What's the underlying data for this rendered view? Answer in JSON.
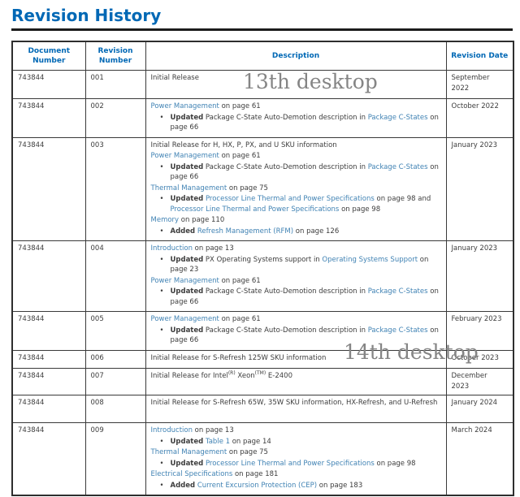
{
  "page": {
    "title": "Revision History"
  },
  "colors": {
    "accent_blue": "#0068b5",
    "link_blue": "#4183b4",
    "body_text": "#3d3d3d",
    "border": "#3a3a3a",
    "watermark_gray": "#858585"
  },
  "watermarks": [
    {
      "text": "13th desktop"
    },
    {
      "text": "14th desktop"
    }
  ],
  "table": {
    "headers": [
      "Document Number",
      "Revision Number",
      "Description",
      "Revision Date"
    ],
    "rows": [
      {
        "document_number": "743844",
        "revision_number": "001",
        "revision_date": "September\n2022",
        "description": [
          {
            "kind": "para",
            "segments": [
              {
                "style": "plain",
                "text": "Initial Release"
              }
            ]
          }
        ]
      },
      {
        "document_number": "743844",
        "revision_number": "002",
        "revision_date": "October 2022",
        "description": [
          {
            "kind": "para",
            "segments": [
              {
                "style": "link",
                "text": "Power Management"
              },
              {
                "style": "plain",
                "text": " on page 61"
              }
            ]
          },
          {
            "kind": "bullet",
            "segments": [
              {
                "style": "bold",
                "text": "Updated"
              },
              {
                "style": "plain",
                "text": " Package C-State Auto-Demotion description in "
              },
              {
                "style": "link",
                "text": "Package C-States"
              },
              {
                "style": "plain",
                "text": " on page 66"
              }
            ]
          }
        ]
      },
      {
        "document_number": "743844",
        "revision_number": "003",
        "revision_date": "January 2023",
        "description": [
          {
            "kind": "para",
            "segments": [
              {
                "style": "plain",
                "text": "Initial Release for H, HX, P, PX, and U SKU information"
              }
            ]
          },
          {
            "kind": "para",
            "segments": [
              {
                "style": "link",
                "text": "Power Management"
              },
              {
                "style": "plain",
                "text": " on page 61"
              }
            ]
          },
          {
            "kind": "bullet",
            "segments": [
              {
                "style": "bold",
                "text": "Updated"
              },
              {
                "style": "plain",
                "text": " Package C-State Auto-Demotion description in "
              },
              {
                "style": "link",
                "text": "Package C-States"
              },
              {
                "style": "plain",
                "text": " on page 66"
              }
            ]
          },
          {
            "kind": "para",
            "segments": [
              {
                "style": "link",
                "text": "Thermal Management"
              },
              {
                "style": "plain",
                "text": " on page 75"
              }
            ]
          },
          {
            "kind": "bullet",
            "segments": [
              {
                "style": "bold",
                "text": "Updated"
              },
              {
                "style": "plain",
                "text": " "
              },
              {
                "style": "link",
                "text": "Processor Line Thermal and Power Specifications"
              },
              {
                "style": "plain",
                "text": " on page 98 and "
              },
              {
                "style": "link",
                "text": "Processor Line Thermal and Power Specifications"
              },
              {
                "style": "plain",
                "text": " on page 98"
              }
            ]
          },
          {
            "kind": "para",
            "segments": [
              {
                "style": "link",
                "text": "Memory"
              },
              {
                "style": "plain",
                "text": " on page 110"
              }
            ]
          },
          {
            "kind": "bullet",
            "segments": [
              {
                "style": "bold",
                "text": "Added"
              },
              {
                "style": "plain",
                "text": " "
              },
              {
                "style": "link",
                "text": "Refresh Management (RFM)"
              },
              {
                "style": "plain",
                "text": " on page 126"
              }
            ]
          }
        ]
      },
      {
        "document_number": "743844",
        "revision_number": "004",
        "revision_date": "January 2023",
        "description": [
          {
            "kind": "para",
            "segments": [
              {
                "style": "link",
                "text": "Introduction"
              },
              {
                "style": "plain",
                "text": " on page 13"
              }
            ]
          },
          {
            "kind": "bullet",
            "segments": [
              {
                "style": "bold",
                "text": "Updated"
              },
              {
                "style": "plain",
                "text": " PX Operating Systems support in "
              },
              {
                "style": "link",
                "text": "Operating Systems Support"
              },
              {
                "style": "plain",
                "text": " on page 23"
              }
            ]
          },
          {
            "kind": "para",
            "segments": [
              {
                "style": "link",
                "text": "Power Management"
              },
              {
                "style": "plain",
                "text": " on page 61"
              }
            ]
          },
          {
            "kind": "bullet",
            "segments": [
              {
                "style": "bold",
                "text": "Updated"
              },
              {
                "style": "plain",
                "text": " Package C-State Auto-Demotion description in "
              },
              {
                "style": "link",
                "text": "Package C-States"
              },
              {
                "style": "plain",
                "text": " on page 66"
              }
            ]
          }
        ]
      },
      {
        "document_number": "743844",
        "revision_number": "005",
        "revision_date": "February 2023",
        "description": [
          {
            "kind": "para",
            "segments": [
              {
                "style": "link",
                "text": "Power Management"
              },
              {
                "style": "plain",
                "text": " on page 61"
              }
            ]
          },
          {
            "kind": "bullet",
            "segments": [
              {
                "style": "bold",
                "text": "Updated"
              },
              {
                "style": "plain",
                "text": " Package C-State Auto-Demotion description in "
              },
              {
                "style": "link",
                "text": "Package C-States"
              },
              {
                "style": "plain",
                "text": " on page 66"
              }
            ]
          }
        ]
      },
      {
        "document_number": "743844",
        "revision_number": "006",
        "revision_date": "October 2023",
        "description": [
          {
            "kind": "para",
            "segments": [
              {
                "style": "plain",
                "text": "Initial Release for S-Refresh 125W SKU information"
              }
            ]
          }
        ]
      },
      {
        "document_number": "743844",
        "revision_number": "007",
        "revision_date": "December\n2023",
        "description": [
          {
            "kind": "para",
            "segments": [
              {
                "style": "plain",
                "text": "Initial Release for Intel"
              },
              {
                "style": "sup",
                "text": "(R)"
              },
              {
                "style": "plain",
                "text": " Xeon"
              },
              {
                "style": "sup",
                "text": "(TM)"
              },
              {
                "style": "plain",
                "text": " E-2400"
              }
            ]
          }
        ]
      },
      {
        "document_number": "743844",
        "revision_number": "008",
        "revision_date": "January 2024",
        "description": [
          {
            "kind": "para",
            "segments": [
              {
                "style": "plain",
                "text": "Initial Release for S-Refresh 65W, 35W SKU information, HX-Refresh, and U-Refresh"
              }
            ]
          }
        ]
      },
      {
        "document_number": "743844",
        "revision_number": "009",
        "revision_date": "March 2024",
        "description": [
          {
            "kind": "para",
            "segments": [
              {
                "style": "link",
                "text": "Introduction"
              },
              {
                "style": "plain",
                "text": " on page 13"
              }
            ]
          },
          {
            "kind": "bullet",
            "segments": [
              {
                "style": "bold",
                "text": "Updated"
              },
              {
                "style": "plain",
                "text": " "
              },
              {
                "style": "link",
                "text": "Table 1"
              },
              {
                "style": "plain",
                "text": " on page 14"
              }
            ]
          },
          {
            "kind": "para",
            "segments": [
              {
                "style": "link",
                "text": "Thermal Management"
              },
              {
                "style": "plain",
                "text": " on page 75"
              }
            ]
          },
          {
            "kind": "bullet",
            "segments": [
              {
                "style": "bold",
                "text": "Updated"
              },
              {
                "style": "plain",
                "text": " "
              },
              {
                "style": "link",
                "text": "Processor Line Thermal and Power Specifications"
              },
              {
                "style": "plain",
                "text": " on page 98"
              }
            ]
          },
          {
            "kind": "para",
            "segments": [
              {
                "style": "link",
                "text": "Electrical Specifications"
              },
              {
                "style": "plain",
                "text": " on page 181"
              }
            ]
          },
          {
            "kind": "bullet",
            "segments": [
              {
                "style": "bold",
                "text": "Added"
              },
              {
                "style": "plain",
                "text": " "
              },
              {
                "style": "link",
                "text": "Current Excursion Protection (CEP)"
              },
              {
                "style": "plain",
                "text": " on page 183"
              }
            ]
          }
        ]
      }
    ]
  }
}
